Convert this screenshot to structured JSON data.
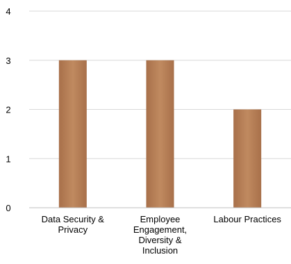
{
  "chart_data": {
    "type": "bar",
    "categories": [
      [
        "Data Security &",
        "Privacy"
      ],
      [
        "Employee",
        "Engagement,",
        "Diversity &",
        "Inclusion"
      ],
      [
        "Labour Practices"
      ]
    ],
    "values": [
      3,
      3,
      2
    ],
    "ylim": [
      0,
      4
    ],
    "yticks": [
      "0",
      "1",
      "2",
      "3",
      "4"
    ],
    "grid": true,
    "legend": "none",
    "colors": {
      "bar": "#a8704a",
      "bar_light": "#c08a60",
      "grid": "#d9d9d9",
      "axis": "#bfbfbf"
    }
  }
}
